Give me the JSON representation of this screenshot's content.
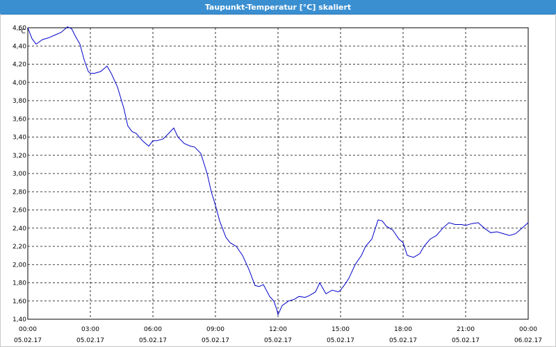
{
  "window": {
    "title": "Taupunkt-Temperatur [°C] skaliert"
  },
  "chart_data": {
    "type": "line",
    "title": "Taupunkt-Temperatur [°C] skaliert",
    "ylabel": "°C",
    "xlabel": "",
    "ylim": [
      1.4,
      4.6
    ],
    "xlim": [
      0,
      24
    ],
    "grid": true,
    "line_color": "#0000cc",
    "y_ticks": [
      "1,40",
      "1,60",
      "1,80",
      "2,00",
      "2,20",
      "2,40",
      "2,60",
      "2,80",
      "3,00",
      "3,20",
      "3,40",
      "3,60",
      "3,80",
      "4,00",
      "4,20",
      "4,40",
      "4,60"
    ],
    "x_ticks": [
      {
        "time": "00:00",
        "date": "05.02.17"
      },
      {
        "time": "03:00",
        "date": "05.02.17"
      },
      {
        "time": "06:00",
        "date": "05.02.17"
      },
      {
        "time": "09:00",
        "date": "05.02.17"
      },
      {
        "time": "12:00",
        "date": "05.02.17"
      },
      {
        "time": "15:00",
        "date": "05.02.17"
      },
      {
        "time": "18:00",
        "date": "05.02.17"
      },
      {
        "time": "21:00",
        "date": "05.02.17"
      },
      {
        "time": "00:00",
        "date": "06.02.17"
      }
    ],
    "series": [
      {
        "x": [
          0,
          0.2,
          0.4,
          0.7,
          1.0,
          1.3,
          1.6,
          1.9,
          2.1,
          2.3,
          2.5,
          2.7,
          2.9,
          3.0,
          3.2,
          3.5,
          3.8,
          4.0,
          4.3,
          4.6,
          4.8,
          5.0,
          5.2,
          5.5,
          5.8,
          6.0,
          6.2,
          6.5,
          6.8,
          7.0,
          7.2,
          7.5,
          7.8,
          8.0,
          8.3,
          8.6,
          8.8,
          9.0,
          9.2,
          9.5,
          9.7,
          10.0,
          10.3,
          10.6,
          10.9,
          11.1,
          11.3,
          11.6,
          11.8,
          11.95,
          12.0,
          12.2,
          12.5,
          12.8,
          13.0,
          13.3,
          13.5,
          13.8,
          14.0,
          14.3,
          14.6,
          14.9,
          15.0,
          15.2,
          15.4,
          15.7,
          16.0,
          16.2,
          16.5,
          16.8,
          17.0,
          17.2,
          17.5,
          17.8,
          18.0,
          18.2,
          18.5,
          18.8,
          19.0,
          19.3,
          19.6,
          19.9,
          20.2,
          20.5,
          20.8,
          21.0,
          21.3,
          21.6,
          21.9,
          22.2,
          22.5,
          22.8,
          23.1,
          23.4,
          23.7,
          24.0
        ],
        "y": [
          4.6,
          4.48,
          4.42,
          4.47,
          4.49,
          4.52,
          4.55,
          4.61,
          4.59,
          4.5,
          4.42,
          4.25,
          4.12,
          4.1,
          4.1,
          4.12,
          4.18,
          4.1,
          3.95,
          3.72,
          3.52,
          3.46,
          3.44,
          3.36,
          3.3,
          3.36,
          3.36,
          3.38,
          3.45,
          3.5,
          3.4,
          3.33,
          3.3,
          3.29,
          3.22,
          3.0,
          2.8,
          2.65,
          2.48,
          2.3,
          2.24,
          2.2,
          2.1,
          1.95,
          1.77,
          1.76,
          1.78,
          1.65,
          1.6,
          1.5,
          1.45,
          1.55,
          1.6,
          1.62,
          1.65,
          1.64,
          1.66,
          1.7,
          1.8,
          1.68,
          1.72,
          1.7,
          1.72,
          1.78,
          1.85,
          2.0,
          2.1,
          2.2,
          2.28,
          2.49,
          2.48,
          2.42,
          2.38,
          2.28,
          2.24,
          2.1,
          2.08,
          2.12,
          2.2,
          2.28,
          2.32,
          2.4,
          2.46,
          2.44,
          2.44,
          2.43,
          2.45,
          2.46,
          2.4,
          2.35,
          2.36,
          2.34,
          2.32,
          2.34,
          2.4,
          2.46
        ]
      }
    ]
  }
}
